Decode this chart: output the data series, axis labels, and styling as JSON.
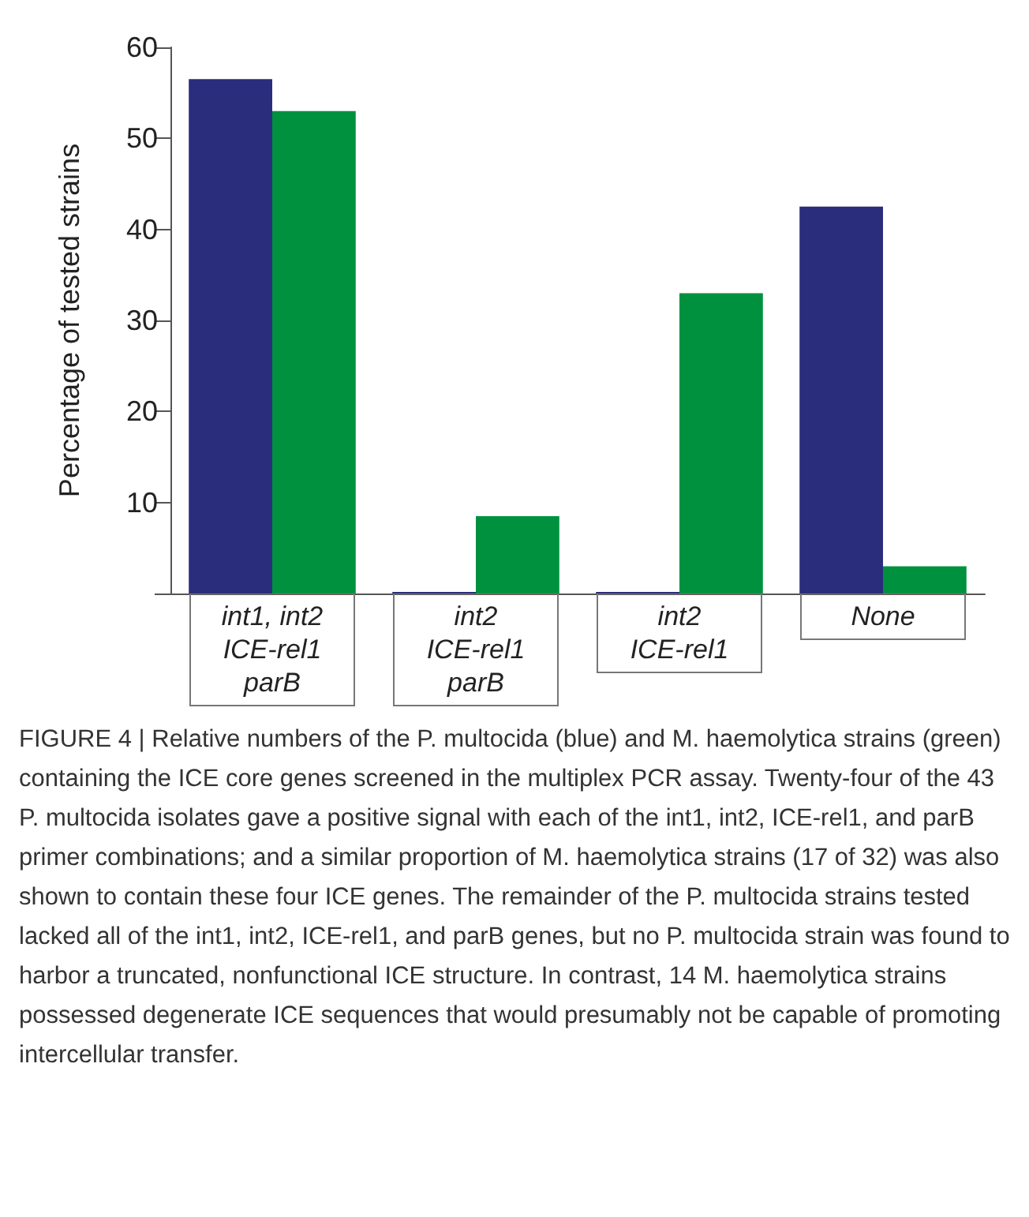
{
  "chart_data": {
    "type": "bar",
    "ylabel": "Percentage of tested strains",
    "categories": [
      "int1, int2\nICE-rel1\nparB",
      "int2\nICE-rel1\nparB",
      "int2\nICE-rel1",
      "None"
    ],
    "series": [
      {
        "color": "#2a2d7c",
        "values": [
          56.5,
          0,
          0,
          42.5
        ]
      },
      {
        "color": "#00913f",
        "values": [
          53,
          8.5,
          33,
          3
        ]
      }
    ],
    "ylim": [
      0,
      60
    ],
    "yticks": [
      {
        "value": 0,
        "label": null
      },
      10,
      20,
      30,
      40,
      50,
      60
    ],
    "grid": false,
    "annotations": [
      "FIGURE 4 | Relative numbers of the P. multocida (blue) and M. haemolytica strains (green) containing the ICE core genes screened in the multiplex PCR assay. Twenty-four of the 43 P. multocida isolates gave a positive signal with each of the int1, int2, ICE-rel1, and parB primer combinations; and a similar proportion of M. haemolytica strains (17 of 32) was also shown to contain these four ICE genes. The remainder of the P. multocida strains tested lacked all of the int1, int2, ICE-rel1, and parB genes, but no P. multocida strain was found to harbor a truncated, nonfunctional ICE structure. In contrast, 14 M. haemolytica strains possessed degenerate ICE sequences that would presumably not be capable of promoting intercellular transfer."
    ]
  }
}
